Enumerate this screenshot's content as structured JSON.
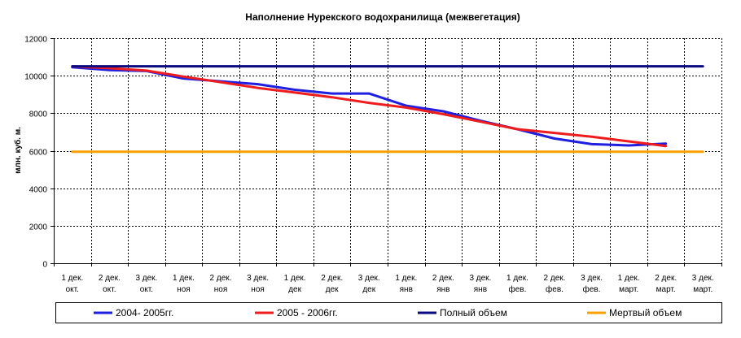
{
  "chart_data": {
    "type": "line",
    "title": "Наполнение Нурекского водохранилища (межвегетация)",
    "xlabel": "",
    "ylabel": "млн. куб. м.",
    "ylim": [
      0,
      12000
    ],
    "yticks": [
      0,
      2000,
      4000,
      6000,
      8000,
      10000,
      12000
    ],
    "grid": true,
    "legend_position": "bottom",
    "categories": [
      [
        "1 дек.",
        "окт."
      ],
      [
        "2 дек.",
        "окт."
      ],
      [
        "3 дек.",
        "окт."
      ],
      [
        "1 дек.",
        "ноя"
      ],
      [
        "2 дек.",
        "ноя"
      ],
      [
        "3 дек.",
        "ноя"
      ],
      [
        "1 дек.",
        "дек"
      ],
      [
        "2 дек.",
        "дек"
      ],
      [
        "3 дек.",
        "дек"
      ],
      [
        "1 дек.",
        "янв"
      ],
      [
        "2 дек.",
        "янв"
      ],
      [
        "3 дек.",
        "янв"
      ],
      [
        "1 дек.",
        "фев."
      ],
      [
        "2 дек.",
        "фев."
      ],
      [
        "3 дек.",
        "фев."
      ],
      [
        "1 дек.",
        "март."
      ],
      [
        "2 дек.",
        "март."
      ],
      [
        "3 дек.",
        "март."
      ]
    ],
    "series": [
      {
        "name": "2004- 2005гг.",
        "color": "#1f1fe0",
        "values": [
          10450,
          10300,
          10250,
          9850,
          9700,
          9550,
          9250,
          9050,
          9050,
          8400,
          8100,
          7600,
          7150,
          6650,
          6350,
          6280,
          6380,
          null
        ]
      },
      {
        "name": "2005 - 2006гг.",
        "color": "#ee1c1c",
        "values": [
          10500,
          10400,
          10270,
          9950,
          9650,
          9350,
          9100,
          8850,
          8550,
          8300,
          7950,
          7550,
          7150,
          6950,
          6750,
          6500,
          6250,
          null
        ]
      },
      {
        "name": "Полный объем",
        "color": "#0a0a80",
        "values": [
          10500,
          10500,
          10500,
          10500,
          10500,
          10500,
          10500,
          10500,
          10500,
          10500,
          10500,
          10500,
          10500,
          10500,
          10500,
          10500,
          10500,
          10500
        ]
      },
      {
        "name": "Мертвый объем",
        "color": "#f7a000",
        "values": [
          5950,
          5950,
          5950,
          5950,
          5950,
          5950,
          5950,
          5950,
          5950,
          5950,
          5950,
          5950,
          5950,
          5950,
          5950,
          5950,
          5950,
          5950
        ]
      }
    ]
  }
}
